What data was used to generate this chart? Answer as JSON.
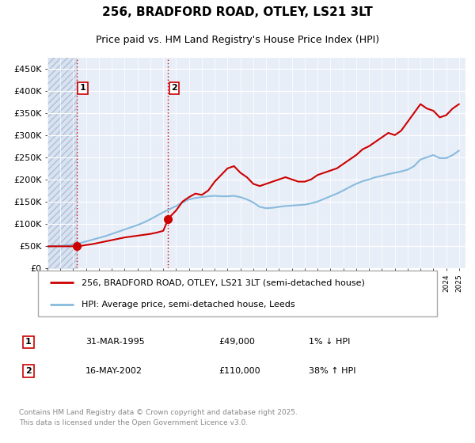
{
  "title": "256, BRADFORD ROAD, OTLEY, LS21 3LT",
  "subtitle": "Price paid vs. HM Land Registry's House Price Index (HPI)",
  "legend_line1": "256, BRADFORD ROAD, OTLEY, LS21 3LT (semi-detached house)",
  "legend_line2": "HPI: Average price, semi-detached house, Leeds",
  "transaction1_date": "31-MAR-1995",
  "transaction1_price": "£49,000",
  "transaction1_hpi": "1% ↓ HPI",
  "transaction2_date": "16-MAY-2002",
  "transaction2_price": "£110,000",
  "transaction2_hpi": "38% ↑ HPI",
  "footer": "Contains HM Land Registry data © Crown copyright and database right 2025.\nThis data is licensed under the Open Government Licence v3.0.",
  "ylim": [
    0,
    475000
  ],
  "yticks": [
    0,
    50000,
    100000,
    150000,
    200000,
    250000,
    300000,
    350000,
    400000,
    450000
  ],
  "chart_bg": "#e8eef8",
  "hatch_bg": "#d8e2f0",
  "grid_color": "#ffffff",
  "red_line_color": "#cc0000",
  "blue_line_color": "#88bbdd",
  "marker1_x": 1995.25,
  "marker1_y": 49000,
  "marker2_x": 2002.38,
  "marker2_y": 110000,
  "vline1_x": 1995.25,
  "vline2_x": 2002.38,
  "xmin": 1993.0,
  "xmax": 2025.5,
  "red_line_data_x": [
    1993.0,
    1994.0,
    1995.0,
    1995.25,
    1995.5,
    1996.0,
    1996.5,
    1997.0,
    1997.5,
    1998.0,
    1998.5,
    1999.0,
    1999.5,
    2000.0,
    2000.5,
    2001.0,
    2001.5,
    2002.0,
    2002.38,
    2002.5,
    2003.0,
    2003.5,
    2004.0,
    2004.5,
    2005.0,
    2005.5,
    2006.0,
    2006.5,
    2007.0,
    2007.5,
    2008.0,
    2008.5,
    2009.0,
    2009.5,
    2010.0,
    2010.5,
    2011.0,
    2011.5,
    2012.0,
    2012.5,
    2013.0,
    2013.5,
    2014.0,
    2014.5,
    2015.0,
    2015.5,
    2016.0,
    2016.5,
    2017.0,
    2017.5,
    2018.0,
    2018.5,
    2019.0,
    2019.5,
    2020.0,
    2020.5,
    2021.0,
    2021.5,
    2022.0,
    2022.5,
    2023.0,
    2023.5,
    2024.0,
    2024.5,
    2025.0
  ],
  "red_line_data_y": [
    49000,
    49000,
    49000,
    49000,
    49500,
    52000,
    54000,
    57000,
    60000,
    63000,
    66000,
    69000,
    71000,
    73000,
    75000,
    77000,
    80000,
    84000,
    110000,
    115000,
    130000,
    150000,
    160000,
    168000,
    165000,
    175000,
    195000,
    210000,
    225000,
    230000,
    215000,
    205000,
    190000,
    185000,
    190000,
    195000,
    200000,
    205000,
    200000,
    195000,
    195000,
    200000,
    210000,
    215000,
    220000,
    225000,
    235000,
    245000,
    255000,
    268000,
    275000,
    285000,
    295000,
    305000,
    300000,
    310000,
    330000,
    350000,
    370000,
    360000,
    355000,
    340000,
    345000,
    360000,
    370000
  ],
  "blue_line_data_x": [
    1993.0,
    1994.0,
    1995.0,
    1995.5,
    1996.0,
    1996.5,
    1997.0,
    1997.5,
    1998.0,
    1998.5,
    1999.0,
    1999.5,
    2000.0,
    2000.5,
    2001.0,
    2001.5,
    2002.0,
    2002.5,
    2003.0,
    2003.5,
    2004.0,
    2004.5,
    2005.0,
    2005.5,
    2006.0,
    2006.5,
    2007.0,
    2007.5,
    2008.0,
    2008.5,
    2009.0,
    2009.5,
    2010.0,
    2010.5,
    2011.0,
    2011.5,
    2012.0,
    2012.5,
    2013.0,
    2013.5,
    2014.0,
    2014.5,
    2015.0,
    2015.5,
    2016.0,
    2016.5,
    2017.0,
    2017.5,
    2018.0,
    2018.5,
    2019.0,
    2019.5,
    2020.0,
    2020.5,
    2021.0,
    2021.5,
    2022.0,
    2022.5,
    2023.0,
    2023.5,
    2024.0,
    2024.5,
    2025.0
  ],
  "blue_line_data_y": [
    49000,
    50000,
    53000,
    56000,
    60000,
    64000,
    68000,
    72000,
    77000,
    82000,
    87000,
    92000,
    97000,
    103000,
    110000,
    118000,
    126000,
    133000,
    140000,
    148000,
    155000,
    158000,
    160000,
    162000,
    163000,
    162000,
    162000,
    163000,
    160000,
    155000,
    148000,
    138000,
    135000,
    136000,
    138000,
    140000,
    141000,
    142000,
    143000,
    146000,
    150000,
    156000,
    162000,
    168000,
    175000,
    183000,
    190000,
    196000,
    200000,
    205000,
    208000,
    212000,
    215000,
    218000,
    222000,
    230000,
    245000,
    250000,
    255000,
    248000,
    248000,
    255000,
    265000
  ]
}
